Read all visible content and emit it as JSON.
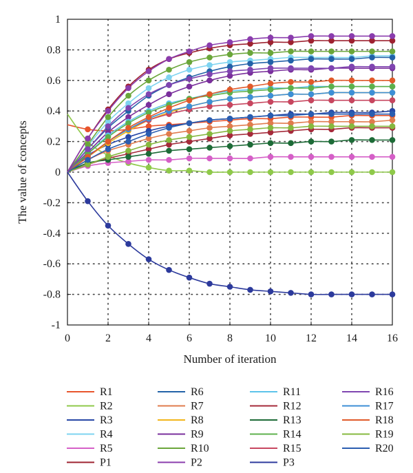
{
  "chart_data": {
    "type": "line",
    "title": "",
    "xlabel": "Number of iteration",
    "ylabel": "The value of concepts",
    "xlim": [
      0,
      16
    ],
    "ylim": [
      -1,
      1
    ],
    "x_ticks": [
      "0",
      "2",
      "4",
      "6",
      "8",
      "10",
      "12",
      "14",
      "16"
    ],
    "y_ticks": [
      "1",
      "0.8",
      "0.6",
      "0.4",
      "0.2",
      "0",
      "-0.2",
      "-0.4",
      "-0.6",
      "-0.8",
      "-1"
    ],
    "grid": "dotted",
    "legend_position": "bottom",
    "x": [
      0,
      1,
      2,
      3,
      4,
      5,
      6,
      7,
      8,
      9,
      10,
      11,
      12,
      13,
      14,
      15,
      16
    ],
    "series": [
      {
        "name": "R1",
        "color": "#e8542c",
        "values": [
          0.31,
          0.28,
          0.27,
          0.28,
          0.3,
          0.31,
          0.32,
          0.33,
          0.34,
          0.35,
          0.35,
          0.36,
          0.36,
          0.36,
          0.37,
          0.37,
          0.37
        ]
      },
      {
        "name": "R2",
        "color": "#8fc94a",
        "values": [
          0.38,
          0.2,
          0.11,
          0.06,
          0.03,
          0.01,
          0.01,
          0.0,
          0.0,
          0.0,
          0.0,
          0.0,
          0.0,
          0.0,
          0.0,
          0.0,
          0.0
        ]
      },
      {
        "name": "R3",
        "color": "#2747a6",
        "values": [
          0.0,
          0.11,
          0.18,
          0.23,
          0.27,
          0.3,
          0.32,
          0.34,
          0.35,
          0.36,
          0.37,
          0.38,
          0.38,
          0.39,
          0.39,
          0.39,
          0.4
        ]
      },
      {
        "name": "R4",
        "color": "#7ed3f0",
        "values": [
          0.0,
          0.17,
          0.33,
          0.45,
          0.55,
          0.62,
          0.67,
          0.7,
          0.72,
          0.73,
          0.74,
          0.75,
          0.75,
          0.75,
          0.75,
          0.76,
          0.76
        ]
      },
      {
        "name": "R5",
        "color": "#d55fc7",
        "values": [
          0.0,
          0.04,
          0.06,
          0.07,
          0.08,
          0.08,
          0.09,
          0.09,
          0.09,
          0.09,
          0.1,
          0.1,
          0.1,
          0.1,
          0.1,
          0.1,
          0.1
        ]
      },
      {
        "name": "R6",
        "color": "#2262a8",
        "values": [
          0.0,
          0.15,
          0.29,
          0.4,
          0.5,
          0.57,
          0.62,
          0.66,
          0.69,
          0.71,
          0.72,
          0.73,
          0.74,
          0.74,
          0.74,
          0.75,
          0.75
        ]
      },
      {
        "name": "R7",
        "color": "#e07b4d",
        "values": [
          0.0,
          0.08,
          0.14,
          0.18,
          0.22,
          0.25,
          0.27,
          0.29,
          0.3,
          0.31,
          0.32,
          0.32,
          0.33,
          0.33,
          0.33,
          0.33,
          0.34
        ]
      },
      {
        "name": "R8",
        "color": "#f2b51a",
        "values": [
          0.0,
          0.1,
          0.19,
          0.27,
          0.34,
          0.39,
          0.43,
          0.46,
          0.48,
          0.49,
          0.5,
          0.51,
          0.51,
          0.52,
          0.52,
          0.52,
          0.52
        ]
      },
      {
        "name": "R9",
        "color": "#7a2f9c",
        "values": [
          0.0,
          0.13,
          0.26,
          0.36,
          0.44,
          0.51,
          0.56,
          0.6,
          0.63,
          0.65,
          0.66,
          0.67,
          0.67,
          0.68,
          0.68,
          0.68,
          0.68
        ]
      },
      {
        "name": "R10",
        "color": "#6aa63a",
        "values": [
          0.0,
          0.18,
          0.36,
          0.5,
          0.6,
          0.67,
          0.72,
          0.75,
          0.77,
          0.78,
          0.78,
          0.79,
          0.79,
          0.79,
          0.79,
          0.79,
          0.79
        ]
      },
      {
        "name": "R11",
        "color": "#5cc3ea",
        "values": [
          0.0,
          0.12,
          0.24,
          0.33,
          0.4,
          0.45,
          0.48,
          0.51,
          0.53,
          0.54,
          0.55,
          0.55,
          0.56,
          0.56,
          0.56,
          0.56,
          0.56
        ]
      },
      {
        "name": "R12",
        "color": "#a52a3a",
        "values": [
          0.0,
          0.05,
          0.09,
          0.12,
          0.15,
          0.18,
          0.2,
          0.22,
          0.24,
          0.25,
          0.26,
          0.27,
          0.28,
          0.28,
          0.29,
          0.29,
          0.29
        ]
      },
      {
        "name": "R13",
        "color": "#1d6b37",
        "values": [
          0.0,
          0.06,
          0.08,
          0.1,
          0.12,
          0.14,
          0.15,
          0.16,
          0.17,
          0.18,
          0.19,
          0.19,
          0.2,
          0.2,
          0.21,
          0.21,
          0.21
        ]
      },
      {
        "name": "R14",
        "color": "#5db04c",
        "values": [
          0.0,
          0.12,
          0.23,
          0.32,
          0.39,
          0.44,
          0.48,
          0.5,
          0.52,
          0.53,
          0.54,
          0.55,
          0.55,
          0.56,
          0.56,
          0.56,
          0.56
        ]
      },
      {
        "name": "R15",
        "color": "#c7465f",
        "values": [
          0.0,
          0.1,
          0.2,
          0.28,
          0.34,
          0.38,
          0.41,
          0.43,
          0.44,
          0.45,
          0.46,
          0.46,
          0.47,
          0.47,
          0.47,
          0.47,
          0.47
        ]
      },
      {
        "name": "R16",
        "color": "#7f45b0",
        "values": [
          0.0,
          0.15,
          0.3,
          0.42,
          0.51,
          0.57,
          0.61,
          0.64,
          0.66,
          0.67,
          0.68,
          0.68,
          0.68,
          0.68,
          0.69,
          0.69,
          0.69
        ]
      },
      {
        "name": "R17",
        "color": "#3d8fd6",
        "values": [
          0.0,
          0.1,
          0.2,
          0.28,
          0.35,
          0.4,
          0.43,
          0.46,
          0.48,
          0.49,
          0.5,
          0.51,
          0.51,
          0.52,
          0.52,
          0.52,
          0.52
        ]
      },
      {
        "name": "R18",
        "color": "#e05a2a",
        "values": [
          0.0,
          0.1,
          0.2,
          0.29,
          0.36,
          0.42,
          0.47,
          0.51,
          0.54,
          0.56,
          0.58,
          0.59,
          0.59,
          0.6,
          0.6,
          0.6,
          0.6
        ]
      },
      {
        "name": "R19",
        "color": "#86b83f",
        "values": [
          0.0,
          0.05,
          0.1,
          0.14,
          0.18,
          0.21,
          0.23,
          0.25,
          0.27,
          0.28,
          0.29,
          0.29,
          0.3,
          0.3,
          0.3,
          0.3,
          0.3
        ]
      },
      {
        "name": "R20",
        "color": "#2a5db0",
        "values": [
          0.0,
          0.08,
          0.15,
          0.2,
          0.25,
          0.29,
          0.32,
          0.34,
          0.35,
          0.36,
          0.37,
          0.37,
          0.38,
          0.38,
          0.38,
          0.38,
          0.38
        ]
      },
      {
        "name": "P1",
        "color": "#9e2230",
        "values": [
          0.0,
          0.22,
          0.41,
          0.56,
          0.67,
          0.74,
          0.78,
          0.81,
          0.83,
          0.84,
          0.85,
          0.85,
          0.86,
          0.86,
          0.86,
          0.86,
          0.86
        ]
      },
      {
        "name": "P2",
        "color": "#8a3cad",
        "values": [
          0.0,
          0.22,
          0.4,
          0.55,
          0.66,
          0.74,
          0.79,
          0.83,
          0.85,
          0.87,
          0.88,
          0.88,
          0.89,
          0.89,
          0.89,
          0.89,
          0.89
        ]
      },
      {
        "name": "P3",
        "color": "#2c3a9c",
        "values": [
          0.0,
          -0.19,
          -0.35,
          -0.47,
          -0.57,
          -0.64,
          -0.69,
          -0.73,
          -0.75,
          -0.77,
          -0.78,
          -0.79,
          -0.8,
          -0.8,
          -0.8,
          -0.8,
          -0.8
        ]
      }
    ]
  }
}
